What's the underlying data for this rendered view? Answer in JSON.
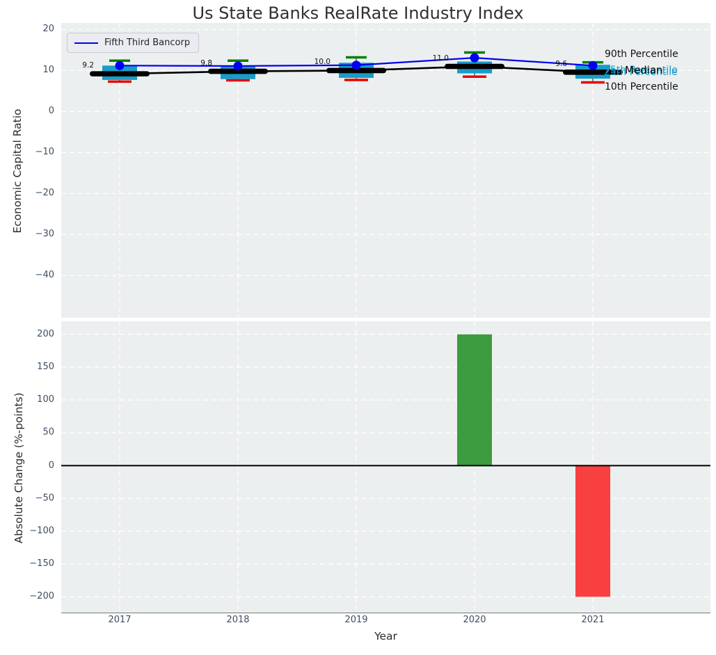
{
  "title": "Us State Banks RealRate Industry Index",
  "legend": {
    "label": "Fifth Third Bancorp",
    "line_color": "#0000f0"
  },
  "right_labels": {
    "p90": "90th Percentile",
    "p75": "75th Percentile",
    "median": "Median",
    "p25": "25th Percentile",
    "p10": "10th Percentile"
  },
  "colors": {
    "box_fill": "#189dc9",
    "company_line": "#0000f0",
    "median_line": "#000000",
    "cap_high": "#007f00",
    "cap_low": "#e60000",
    "bar_positive": "#3d9c40",
    "bar_negative": "#f94040",
    "plot_bg": "#eceff0",
    "grid": "#ffffff",
    "tick_text": "#3d4e62"
  },
  "chart_data": [
    {
      "type": "box",
      "title": "Us State Banks RealRate Industry Index",
      "ylabel": "Economic Capital Ratio",
      "categories": [
        "2017",
        "2018",
        "2019",
        "2020",
        "2021"
      ],
      "series": [
        {
          "name": "Fifth Third Bancorp",
          "values": [
            11.2,
            11.1,
            11.3,
            13.1,
            11.2
          ]
        },
        {
          "name": "Median",
          "values": [
            9.2,
            9.8,
            10.0,
            11.0,
            9.6
          ]
        }
      ],
      "boxes": {
        "p90": [
          12.4,
          12.4,
          13.2,
          14.4,
          12.0
        ],
        "p75": [
          11.2,
          11.2,
          11.9,
          12.2,
          11.4
        ],
        "p25": [
          7.7,
          7.9,
          8.2,
          9.3,
          8.0
        ],
        "p10": [
          7.3,
          7.6,
          7.7,
          8.5,
          7.1
        ]
      },
      "annotations": [
        "9.2",
        "9.8",
        "10.0",
        "11.0",
        "9.6"
      ],
      "yticks": [
        20,
        10,
        0,
        -10,
        -20,
        -30,
        -40
      ],
      "ylim": [
        -50.3,
        21.6
      ],
      "grid": true,
      "legend_position": "upper left"
    },
    {
      "type": "bar",
      "ylabel": "Absolute Change (%-points)",
      "xlabel": "Year",
      "categories": [
        "2017",
        "2018",
        "2019",
        "2020",
        "2021"
      ],
      "values": [
        null,
        null,
        null,
        200,
        -200
      ],
      "yticks": [
        200,
        150,
        100,
        50,
        0,
        -50,
        -100,
        -150,
        -200
      ],
      "ylim": [
        -224,
        220
      ],
      "grid": true,
      "positive_color": "#3d9c40",
      "negative_color": "#f94040"
    }
  ]
}
